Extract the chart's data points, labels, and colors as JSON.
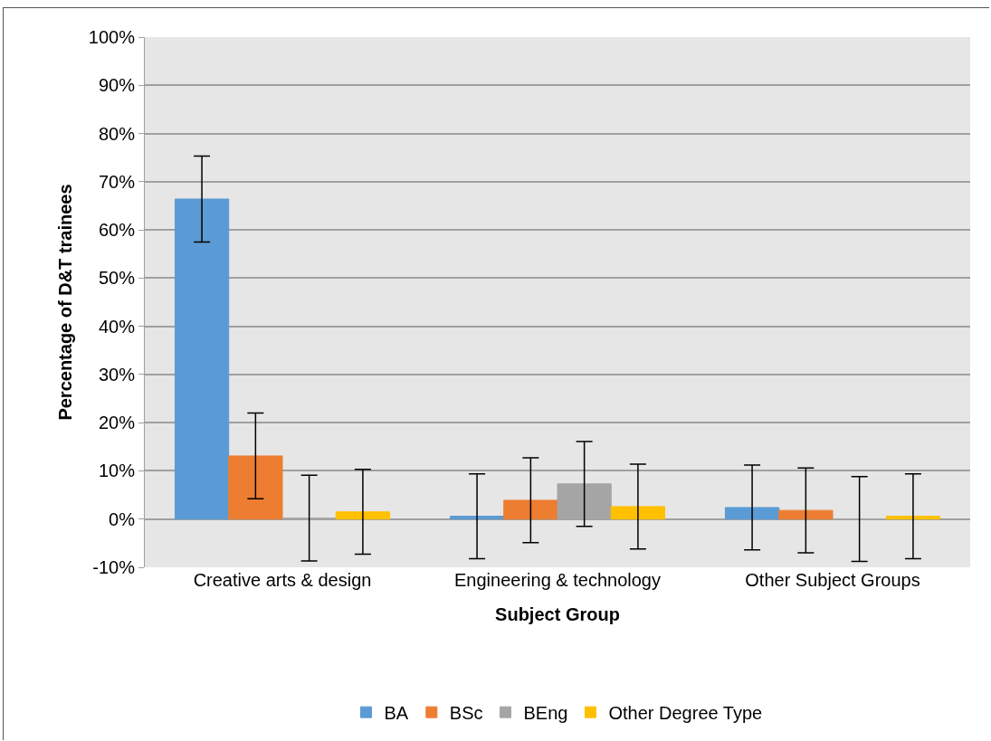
{
  "chart_data": {
    "type": "bar",
    "xlabel": "Subject Group",
    "ylabel": "Percentage of D&T trainees",
    "categories": [
      "Creative arts & design",
      "Engineering & technology",
      "Other Subject Groups"
    ],
    "series": [
      {
        "name": "BA",
        "color": "#5b9bd5",
        "values": [
          66.4,
          0.6,
          2.4
        ],
        "errors": [
          8.9,
          8.8,
          8.8
        ]
      },
      {
        "name": "BSc",
        "color": "#ed7d31",
        "values": [
          13.1,
          3.9,
          1.8
        ],
        "errors": [
          8.9,
          8.8,
          8.8
        ]
      },
      {
        "name": "BEng",
        "color": "#a5a5a5",
        "values": [
          0.2,
          7.3,
          0
        ],
        "errors": [
          8.9,
          8.8,
          8.8
        ]
      },
      {
        "name": "Other Degree Type",
        "color": "#ffc000",
        "values": [
          1.5,
          2.6,
          0.6
        ],
        "errors": [
          8.8,
          8.8,
          8.8
        ]
      }
    ],
    "ylim": [
      -10,
      100
    ],
    "yticks": [
      {
        "value": -10,
        "label": "-10%"
      },
      {
        "value": 0,
        "label": "0%"
      },
      {
        "value": 10,
        "label": "10%"
      },
      {
        "value": 20,
        "label": "20%"
      },
      {
        "value": 30,
        "label": "30%"
      },
      {
        "value": 40,
        "label": "40%"
      },
      {
        "value": 50,
        "label": "50%"
      },
      {
        "value": 60,
        "label": "60%"
      },
      {
        "value": 70,
        "label": "70%"
      },
      {
        "value": 80,
        "label": "80%"
      },
      {
        "value": 90,
        "label": "90%"
      },
      {
        "value": 100,
        "label": "100%"
      }
    ],
    "grid": "y",
    "legend": "bottom"
  }
}
